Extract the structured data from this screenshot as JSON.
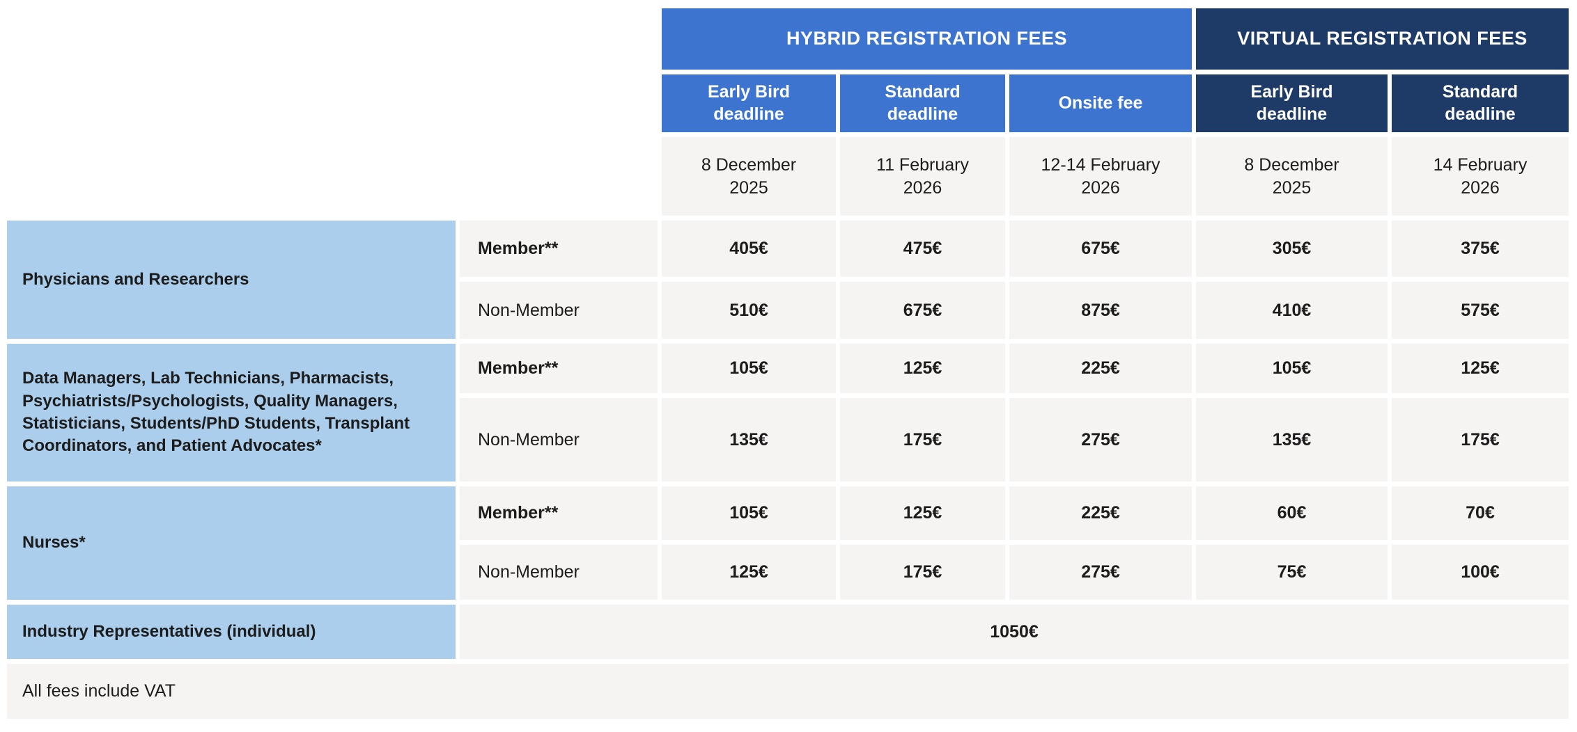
{
  "colors": {
    "hybrid_header": "#3c74d0",
    "virtual_header": "#1e3a66",
    "category_bg": "#abceec",
    "cell_bg": "#f5f4f2",
    "header_text": "#ffffff",
    "body_text": "#1c1c1c"
  },
  "table": {
    "header_groups": [
      {
        "id": "hybrid",
        "label": "HYBRID REGISTRATION FEES"
      },
      {
        "id": "virtual",
        "label": "VIRTUAL REGISTRATION FEES"
      }
    ],
    "columns": [
      {
        "group": "hybrid",
        "label": "Early Bird deadline",
        "date": "8 December 2025"
      },
      {
        "group": "hybrid",
        "label": "Standard deadline",
        "date": "11 February 2026"
      },
      {
        "group": "hybrid",
        "label": "Onsite fee",
        "date": "12-14 February 2026"
      },
      {
        "group": "virtual",
        "label": "Early Bird deadline",
        "date": "8 December 2025"
      },
      {
        "group": "virtual",
        "label": "Standard deadline",
        "date": "14 February 2026"
      }
    ],
    "categories": [
      {
        "label": "Physicians and Researchers",
        "rows": [
          {
            "type": "Member**",
            "fees": [
              "405€",
              "475€",
              "675€",
              "305€",
              "375€"
            ]
          },
          {
            "type": "Non-Member",
            "fees": [
              "510€",
              "675€",
              "875€",
              "410€",
              "575€"
            ]
          }
        ]
      },
      {
        "label": "Data Managers, Lab Technicians, Pharmacists, Psychiatrists/Psychologists, Quality Managers, Statisticians, Students/PhD Students, Transplant Coordinators, and Patient Advocates*",
        "rows": [
          {
            "type": "Member**",
            "fees": [
              "105€",
              "125€",
              "225€",
              "105€",
              "125€"
            ]
          },
          {
            "type": "Non-Member",
            "fees": [
              "135€",
              "175€",
              "275€",
              "135€",
              "175€"
            ]
          }
        ]
      },
      {
        "label": "Nurses*",
        "rows": [
          {
            "type": "Member**",
            "fees": [
              "105€",
              "125€",
              "225€",
              "60€",
              "70€"
            ]
          },
          {
            "type": "Non-Member",
            "fees": [
              "125€",
              "175€",
              "275€",
              "75€",
              "100€"
            ]
          }
        ]
      }
    ],
    "industry": {
      "label": "Industry Representatives (individual)",
      "fee": "1050€"
    },
    "footnote": "All fees include VAT"
  }
}
